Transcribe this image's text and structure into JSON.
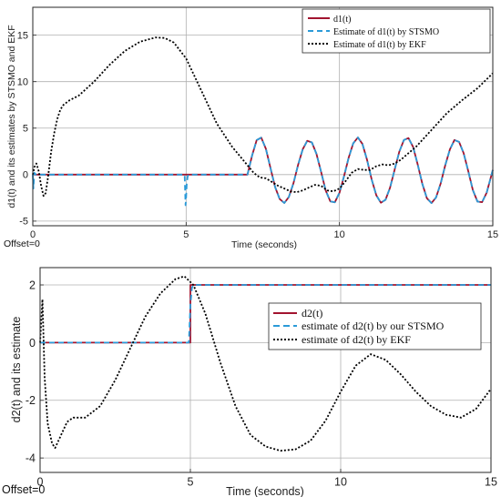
{
  "colors": {
    "truth": "#a2142f",
    "stsmo": "#2b9ad8",
    "ekf": "#000000",
    "grid": "#808080"
  },
  "chart_data": [
    {
      "type": "line",
      "ylabel": "d1(t) and its estimates by STSMO and EKF",
      "xlabel": "Time (seconds)",
      "offset_label": "Offset=0",
      "xlim": [
        0,
        15
      ],
      "ylim": [
        -5.5,
        18
      ],
      "xticks": [
        0,
        5,
        10,
        15
      ],
      "yticks": [
        -5,
        0,
        5,
        10,
        15
      ],
      "legend_position": "top-right",
      "series": [
        {
          "name": "d1(t)",
          "x": [
            0,
            7,
            7,
            7.15,
            7.3,
            7.45,
            7.6,
            7.75,
            7.9,
            8.05,
            8.2,
            8.35,
            8.5,
            8.65,
            8.8,
            8.95,
            9.1,
            9.25,
            9.4,
            9.55,
            9.7,
            9.85,
            10.0,
            10.15,
            10.3,
            10.45,
            10.6,
            10.75,
            10.9,
            11.05,
            11.2,
            11.35,
            11.5,
            11.65,
            11.8,
            11.95,
            12.1,
            12.25,
            12.4,
            12.55,
            12.7,
            12.85,
            13.0,
            13.15,
            13.3,
            13.45,
            13.6,
            13.75,
            13.9,
            14.05,
            14.2,
            14.35,
            14.5,
            14.65,
            14.8,
            14.95,
            15.0
          ],
          "y": [
            0,
            0,
            0,
            2.04,
            3.71,
            3.98,
            2.77,
            0.73,
            -1.33,
            -2.62,
            -3.05,
            -2.41,
            -0.92,
            1.03,
            2.72,
            3.64,
            3.46,
            2.24,
            0.3,
            -1.69,
            -2.88,
            -2.97,
            -1.95,
            -0.16,
            1.83,
            3.37,
            4.0,
            3.29,
            1.57,
            -0.52,
            -2.22,
            -3.02,
            -2.71,
            -1.41,
            0.55,
            2.45,
            3.72,
            3.93,
            2.98,
            1.11,
            -0.98,
            -2.53,
            -3.06,
            -2.45,
            -0.95,
            1.01,
            2.72,
            3.72,
            3.52,
            2.3,
            0.36,
            -1.66,
            -2.91,
            -2.96,
            -1.94,
            -0.12,
            0.5
          ]
        },
        {
          "name": "Estimate of d1(t) by STSMO",
          "x": [
            0,
            0.02,
            0.05,
            0.1,
            4.95,
            4.98,
            5.0,
            5.02,
            5.05,
            5.08,
            7,
            7,
            7.15,
            7.3,
            7.45,
            7.6,
            7.75,
            7.9,
            8.05,
            8.2,
            8.35,
            8.5,
            8.65,
            8.8,
            8.95,
            9.1,
            9.25,
            9.4,
            9.55,
            9.7,
            9.85,
            10.0,
            10.15,
            10.3,
            10.45,
            10.6,
            10.75,
            10.9,
            11.05,
            11.2,
            11.35,
            11.5,
            11.65,
            11.8,
            11.95,
            12.1,
            12.25,
            12.4,
            12.55,
            12.7,
            12.85,
            13.0,
            13.15,
            13.3,
            13.45,
            13.6,
            13.75,
            13.9,
            14.05,
            14.2,
            14.35,
            14.5,
            14.65,
            14.8,
            14.95,
            15.0
          ],
          "y": [
            0,
            -1.5,
            0.2,
            0,
            0,
            -3.3,
            -2.5,
            -1.0,
            -0.2,
            0,
            0,
            0,
            2.04,
            3.71,
            3.98,
            2.77,
            0.73,
            -1.33,
            -2.62,
            -3.05,
            -2.41,
            -0.92,
            1.03,
            2.72,
            3.64,
            3.46,
            2.24,
            0.3,
            -1.69,
            -2.88,
            -2.97,
            -1.95,
            -0.16,
            1.83,
            3.37,
            4.0,
            3.29,
            1.57,
            -0.52,
            -2.22,
            -3.02,
            -2.71,
            -1.41,
            0.55,
            2.45,
            3.72,
            3.93,
            2.98,
            1.11,
            -0.98,
            -2.53,
            -3.06,
            -2.45,
            -0.95,
            1.01,
            2.72,
            3.72,
            3.52,
            2.3,
            0.36,
            -1.66,
            -2.91,
            -2.96,
            -1.94,
            -0.12,
            0.5
          ]
        },
        {
          "name": "Estimate of d1(t) by EKF",
          "x": [
            0,
            0.05,
            0.12,
            0.2,
            0.27,
            0.35,
            0.42,
            0.5,
            0.6,
            0.7,
            0.8,
            0.9,
            1.0,
            1.2,
            1.5,
            2.0,
            2.5,
            3.0,
            3.5,
            4.0,
            4.3,
            4.6,
            5.0,
            5.5,
            6.0,
            6.5,
            7.0,
            7.2,
            7.4,
            7.6,
            7.8,
            8.0,
            8.2,
            8.4,
            8.6,
            8.8,
            9.0,
            9.2,
            9.4,
            9.6,
            9.8,
            10.0,
            10.2,
            10.4,
            10.6,
            10.8,
            11.0,
            11.2,
            11.4,
            11.6,
            11.8,
            12.0,
            12.5,
            13.0,
            13.5,
            14.0,
            14.5,
            15.0
          ],
          "y": [
            0,
            0.8,
            1.2,
            0.3,
            -1.2,
            -2.3,
            -2.0,
            -0.2,
            2.5,
            4.5,
            6.0,
            7.0,
            7.5,
            8.0,
            8.5,
            10.0,
            11.8,
            13.3,
            14.3,
            14.75,
            14.7,
            14.2,
            12.5,
            9.0,
            5.5,
            3.0,
            1.0,
            0.2,
            -0.3,
            -0.4,
            -0.8,
            -1.2,
            -1.5,
            -1.8,
            -1.9,
            -1.7,
            -1.4,
            -1.1,
            -1.2,
            -1.7,
            -1.8,
            -1.5,
            -0.7,
            0.2,
            0.6,
            0.5,
            0.5,
            0.9,
            1.1,
            1.0,
            1.2,
            1.6,
            3.0,
            4.8,
            6.6,
            8.0,
            9.3,
            10.9
          ]
        }
      ]
    },
    {
      "type": "line",
      "ylabel": "d2(t) and its estimate",
      "xlabel": "Time (seconds)",
      "offset_label": "Offset=0",
      "xlim": [
        0,
        15
      ],
      "ylim": [
        -4.5,
        2.6
      ],
      "xticks": [
        0,
        5,
        10,
        15
      ],
      "yticks": [
        -4,
        -2,
        0,
        2
      ],
      "legend_position": "top-right",
      "series": [
        {
          "name": "d2(t)",
          "x": [
            0,
            5,
            5,
            15
          ],
          "y": [
            0,
            0,
            2,
            2
          ]
        },
        {
          "name": "estimate of d2(t) by our STSMO",
          "x": [
            0,
            4.95,
            4.97,
            5.0,
            5.05,
            5.1,
            15
          ],
          "y": [
            0,
            0,
            0.5,
            1.3,
            1.9,
            2.0,
            2.0
          ]
        },
        {
          "name": "estimate of d2(t) by EKF",
          "x": [
            0,
            0.08,
            0.15,
            0.25,
            0.4,
            0.5,
            0.7,
            0.9,
            1.1,
            1.5,
            2.0,
            2.5,
            3.0,
            3.5,
            4.0,
            4.5,
            4.8,
            5.1,
            5.5,
            6.0,
            6.5,
            7.0,
            7.5,
            8.0,
            8.5,
            9.0,
            9.5,
            10.0,
            10.5,
            11.0,
            11.5,
            12.0,
            12.5,
            13.0,
            13.5,
            14.0,
            14.5,
            15.0
          ],
          "y": [
            0,
            1.5,
            -1.2,
            -2.8,
            -3.5,
            -3.65,
            -3.2,
            -2.75,
            -2.6,
            -2.6,
            -2.2,
            -1.3,
            -0.2,
            0.9,
            1.7,
            2.2,
            2.3,
            2.0,
            1.0,
            -0.7,
            -2.2,
            -3.2,
            -3.6,
            -3.75,
            -3.7,
            -3.4,
            -2.7,
            -1.7,
            -0.8,
            -0.4,
            -0.6,
            -1.1,
            -1.7,
            -2.2,
            -2.5,
            -2.6,
            -2.3,
            -1.6
          ]
        }
      ]
    }
  ]
}
